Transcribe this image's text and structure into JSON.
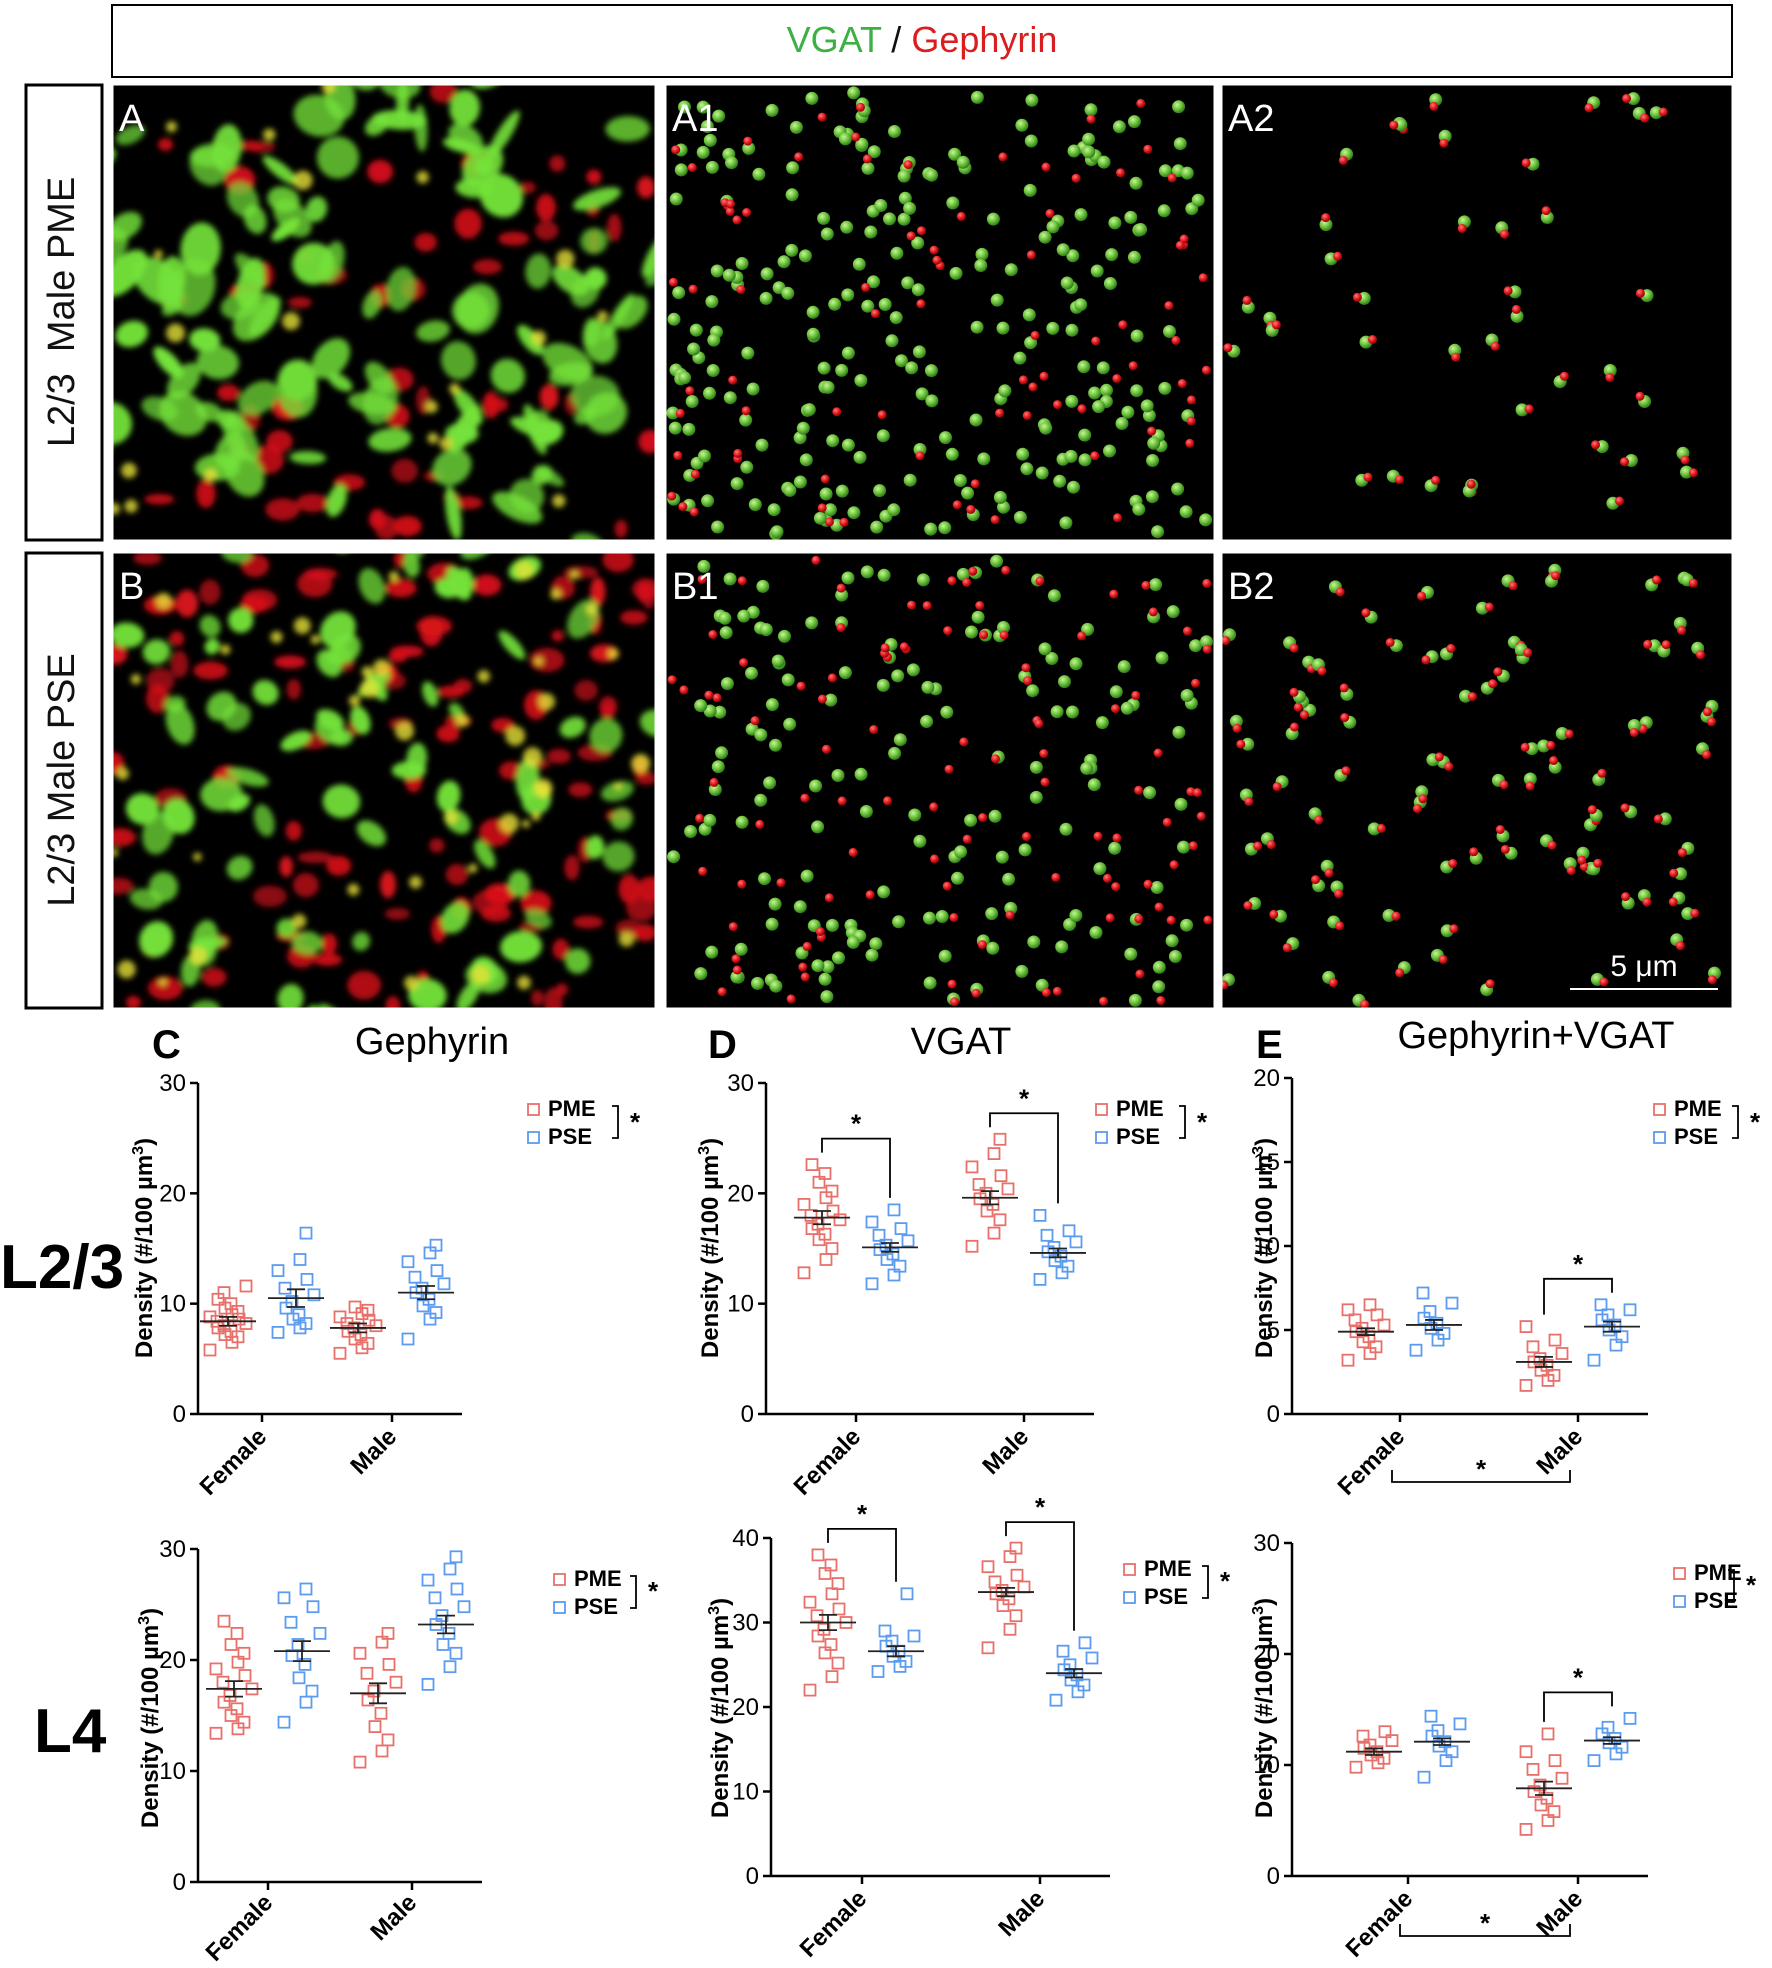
{
  "header": {
    "vgat": "VGAT",
    "slash": " / ",
    "gephyrin": "Gephyrin",
    "vgat_color": "#3cb043",
    "gephyrin_color": "#d81e1e"
  },
  "rows": [
    {
      "label": "L2/3  Male PME"
    },
    {
      "label": "L2/3 Male PSE"
    }
  ],
  "image_panels": [
    {
      "label": "A",
      "kind": "raw"
    },
    {
      "label": "A1",
      "kind": "spheres"
    },
    {
      "label": "A2",
      "kind": "spheres-colocalized"
    },
    {
      "label": "B",
      "kind": "raw"
    },
    {
      "label": "B1",
      "kind": "spheres"
    },
    {
      "label": "B2",
      "kind": "spheres-colocalized"
    }
  ],
  "scale_bar": {
    "label": "5 μm"
  },
  "layer_labels": {
    "l23": "L2/3",
    "l4": "L4"
  },
  "colors": {
    "pme": "#e8706a",
    "pse": "#5b9bf0",
    "green_channel": "#7ddc3a",
    "red_channel": "#e0151a"
  },
  "significance_mark": "*",
  "chart_data": [
    {
      "panel": "C",
      "layer": "L2/3",
      "type": "scatter",
      "title": "Gephyrin",
      "ylabel": "Density (#/100 µm³)",
      "ylim": [
        0,
        30
      ],
      "yticks": [
        0,
        10,
        20,
        30
      ],
      "categories": [
        "Female",
        "Male"
      ],
      "legend": [
        "PME",
        "PSE"
      ],
      "legend_sig": "*",
      "series": [
        {
          "name": "PME",
          "means": [
            8.4,
            7.8
          ],
          "sem": [
            0.4,
            0.4
          ],
          "points": [
            [
              5.8,
              6.5,
              7,
              7.2,
              7.5,
              7.8,
              8,
              8.2,
              8.4,
              8.6,
              8.8,
              9,
              9.3,
              9.6,
              10,
              10.4,
              11,
              11.6
            ],
            [
              5.5,
              6,
              6.4,
              6.8,
              7.2,
              7.5,
              7.8,
              8,
              8.2,
              8.5,
              8.8,
              9.1,
              9.4,
              9.7
            ]
          ]
        },
        {
          "name": "PSE",
          "means": [
            10.5,
            11.0
          ],
          "sem": [
            0.8,
            0.6
          ],
          "points": [
            [
              7.4,
              7.8,
              8.2,
              8.6,
              9,
              9.6,
              10.2,
              10.8,
              11.4,
              12.2,
              13,
              14,
              16.4
            ],
            [
              6.8,
              8.6,
              9.2,
              9.8,
              10.4,
              11,
              11.4,
              11.8,
              12.4,
              13,
              13.8,
              14.6,
              15.3
            ]
          ]
        }
      ],
      "brackets": []
    },
    {
      "panel": "D",
      "layer": "L2/3",
      "type": "scatter",
      "title": "VGAT",
      "ylabel": "Density (#/100 µm³)",
      "ylim": [
        0,
        30
      ],
      "yticks": [
        0,
        10,
        20,
        30
      ],
      "categories": [
        "Female",
        "Male"
      ],
      "legend": [
        "PME",
        "PSE"
      ],
      "legend_sig": "*",
      "series": [
        {
          "name": "PME",
          "means": [
            17.8,
            19.6
          ],
          "sem": [
            0.6,
            0.6
          ],
          "points": [
            [
              12.8,
              14,
              15,
              15.8,
              16.3,
              16.8,
              17.2,
              17.6,
              18,
              18.4,
              19,
              19.6,
              20.2,
              21,
              21.8,
              22.6
            ],
            [
              15.2,
              16.4,
              17.6,
              18.4,
              19,
              19.5,
              20,
              20.4,
              20.8,
              21.6,
              22.4,
              23.6,
              24.9
            ]
          ]
        },
        {
          "name": "PSE",
          "means": [
            15.1,
            14.6
          ],
          "sem": [
            0.4,
            0.4
          ],
          "points": [
            [
              11.8,
              12.6,
              13.4,
              14,
              14.5,
              14.9,
              15.3,
              15.7,
              16.2,
              16.8,
              17.4,
              18.5
            ],
            [
              12.2,
              12.8,
              13.4,
              13.9,
              14.3,
              14.7,
              15.1,
              15.6,
              16.2,
              16.6,
              18
            ]
          ]
        }
      ],
      "brackets": [
        {
          "type": "within",
          "category": 0,
          "label": "*"
        },
        {
          "type": "within",
          "category": 1,
          "label": "*"
        }
      ]
    },
    {
      "panel": "E",
      "layer": "L2/3",
      "type": "scatter",
      "title": "Gephyrin+VGAT",
      "ylabel": "Density (#/100 µm³)",
      "ylim": [
        0,
        20
      ],
      "yticks": [
        0,
        5,
        10,
        15,
        20
      ],
      "categories": [
        "Female",
        "Male"
      ],
      "legend": [
        "PME",
        "PSE"
      ],
      "legend_sig": "*",
      "series": [
        {
          "name": "PME",
          "means": [
            4.9,
            3.1
          ],
          "sem": [
            0.2,
            0.3
          ],
          "points": [
            [
              3.2,
              3.6,
              4,
              4.3,
              4.6,
              4.9,
              5.1,
              5.3,
              5.6,
              5.9,
              6.2,
              6.5
            ],
            [
              1.7,
              2,
              2.3,
              2.6,
              2.9,
              3.1,
              3.3,
              3.6,
              4,
              4.4,
              5.2
            ]
          ]
        },
        {
          "name": "PSE",
          "means": [
            5.3,
            5.2
          ],
          "sem": [
            0.3,
            0.3
          ],
          "points": [
            [
              3.8,
              4.4,
              4.8,
              5.1,
              5.4,
              5.7,
              6.1,
              6.6,
              7.2
            ],
            [
              3.2,
              4.1,
              4.6,
              5,
              5.3,
              5.6,
              5.9,
              6.2,
              6.5
            ]
          ]
        }
      ],
      "brackets": [
        {
          "type": "within",
          "category": 1,
          "label": "*"
        },
        {
          "type": "between",
          "label": "*"
        }
      ]
    },
    {
      "panel": "C",
      "layer": "L4",
      "type": "scatter",
      "title": "",
      "ylabel": "Density (#/100 µm³)",
      "ylim": [
        0,
        30
      ],
      "yticks": [
        0,
        10,
        20,
        30
      ],
      "categories": [
        "Female",
        "Male"
      ],
      "legend": [
        "PME",
        "PSE"
      ],
      "legend_sig": "*",
      "series": [
        {
          "name": "PME",
          "means": [
            17.4,
            17.0
          ],
          "sem": [
            0.7,
            0.9
          ],
          "points": [
            [
              13.4,
              13.8,
              14.4,
              15,
              15.6,
              16.2,
              16.8,
              17.4,
              18,
              18.6,
              19.2,
              19.8,
              20.6,
              21.4,
              22.4,
              23.5
            ],
            [
              10.8,
              11.8,
              12.8,
              14,
              15.2,
              16.4,
              17.2,
              18,
              18.8,
              19.6,
              20.6,
              21.6,
              22.4
            ]
          ]
        },
        {
          "name": "PSE",
          "means": [
            20.8,
            23.2
          ],
          "sem": [
            0.9,
            0.8
          ],
          "points": [
            [
              14.4,
              16.2,
              17.2,
              18.4,
              19.6,
              20.4,
              21.4,
              22.4,
              23.4,
              24.8,
              25.6,
              26.4
            ],
            [
              17.8,
              19.4,
              20.6,
              21.4,
              22.4,
              23.2,
              24,
              24.8,
              25.6,
              26.4,
              27.2,
              28.2,
              29.3
            ]
          ]
        }
      ],
      "brackets": []
    },
    {
      "panel": "D",
      "layer": "L4",
      "type": "scatter",
      "title": "",
      "ylabel": "Density (#/100 µm³)",
      "ylim": [
        0,
        40
      ],
      "yticks": [
        0,
        10,
        20,
        30,
        40
      ],
      "categories": [
        "Female",
        "Male"
      ],
      "legend": [
        "PME",
        "PSE"
      ],
      "legend_sig": "*",
      "series": [
        {
          "name": "PME",
          "means": [
            30.0,
            33.6
          ],
          "sem": [
            0.9,
            0.5
          ],
          "points": [
            [
              22,
              23.6,
              25.2,
              26.4,
              27.4,
              28.4,
              29.2,
              30,
              30.8,
              31.6,
              32.4,
              33.4,
              34.6,
              35.8,
              36.8,
              38
            ],
            [
              27,
              29.2,
              30.8,
              32,
              32.8,
              33.4,
              33.8,
              34.2,
              34.8,
              35.6,
              36.6,
              37.8,
              38.8
            ]
          ]
        },
        {
          "name": "PSE",
          "means": [
            26.6,
            24.0
          ],
          "sem": [
            0.6,
            0.5
          ],
          "points": [
            [
              24.2,
              24.8,
              25.4,
              26,
              26.6,
              27.2,
              27.8,
              28.4,
              29,
              33.4
            ],
            [
              20.8,
              21.8,
              22.6,
              23.2,
              23.8,
              24.4,
              25,
              25.8,
              26.6,
              27.6
            ]
          ]
        }
      ],
      "brackets": [
        {
          "type": "within",
          "category": 0,
          "label": "*"
        },
        {
          "type": "within",
          "category": 1,
          "label": "*"
        }
      ]
    },
    {
      "panel": "E",
      "layer": "L4",
      "type": "scatter",
      "title": "",
      "ylabel": "Density (#/100 µm³)",
      "ylim": [
        0,
        30
      ],
      "yticks": [
        0,
        10,
        20,
        30
      ],
      "categories": [
        "Female",
        "Male"
      ],
      "legend": [
        "PME",
        "PSE"
      ],
      "legend_sig": "*",
      "series": [
        {
          "name": "PME",
          "means": [
            11.2,
            7.9
          ],
          "sem": [
            0.3,
            0.6
          ],
          "points": [
            [
              9.8,
              10.2,
              10.6,
              10.9,
              11.2,
              11.5,
              11.8,
              12.2,
              12.6,
              13
            ],
            [
              4.2,
              5,
              5.8,
              6.4,
              7,
              7.6,
              8.2,
              8.8,
              9.6,
              10.4,
              11.2,
              12.8
            ]
          ]
        },
        {
          "name": "PSE",
          "means": [
            12.1,
            12.2
          ],
          "sem": [
            0.3,
            0.3
          ],
          "points": [
            [
              8.9,
              10.4,
              11.2,
              11.7,
              12.1,
              12.6,
              13.1,
              13.7,
              14.4
            ],
            [
              10.4,
              11,
              11.6,
              12,
              12.4,
              12.8,
              13.4,
              14.2
            ]
          ]
        }
      ],
      "brackets": [
        {
          "type": "within",
          "category": 1,
          "label": "*"
        },
        {
          "type": "between",
          "label": "*"
        }
      ]
    }
  ]
}
